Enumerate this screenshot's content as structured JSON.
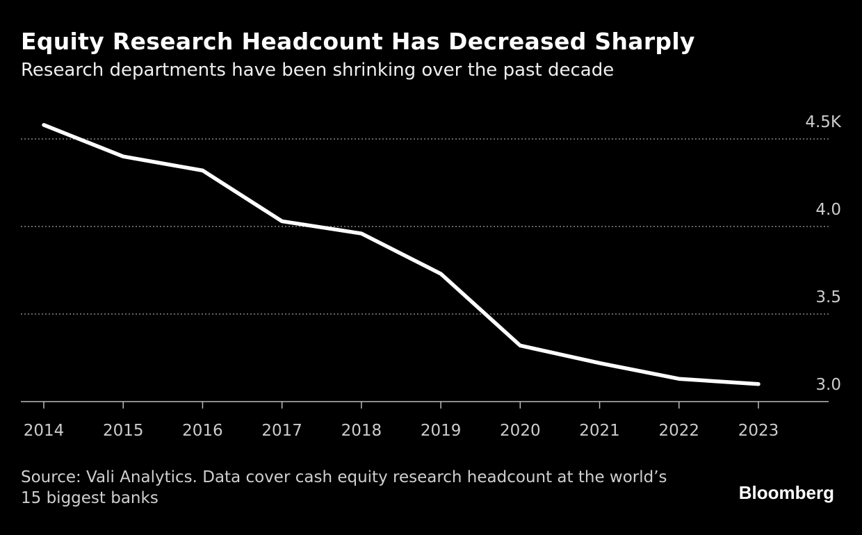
{
  "title": "Equity Research Headcount Has Decreased Sharply",
  "subtitle": "Research departments have been shrinking over the past decade",
  "source": "Source: Vali Analytics. Data cover cash equity research headcount at the world’s 15 biggest banks",
  "logo": "Bloomberg",
  "colors": {
    "background": "#000000",
    "line": "#ffffff",
    "grid": "#888888",
    "text": "#cccccc"
  },
  "chart_data": {
    "type": "line",
    "x": [
      "2014",
      "2015",
      "2016",
      "2017",
      "2018",
      "2019",
      "2020",
      "2021",
      "2022",
      "2023"
    ],
    "series": [
      {
        "values": [
          4.58,
          4.4,
          4.32,
          4.03,
          3.96,
          3.73,
          3.32,
          3.22,
          3.13,
          3.1
        ]
      }
    ],
    "ylim": [
      3.0,
      4.5
    ],
    "yticks": [
      3.0,
      3.5,
      4.0,
      4.5
    ],
    "ytick_labels": [
      "3.0",
      "3.5",
      "4.0",
      "4.5K"
    ],
    "grid": true,
    "y_axis_side": "right"
  }
}
